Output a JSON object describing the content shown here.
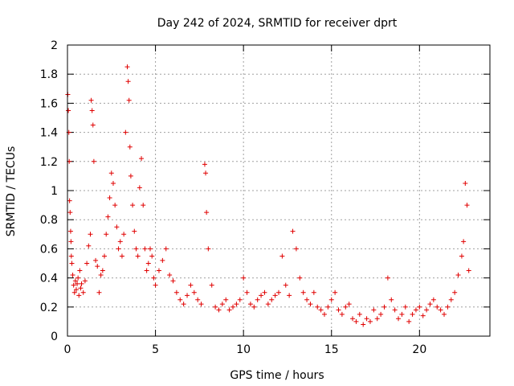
{
  "chart_data": {
    "type": "scatter",
    "title": "Day 242 of 2024, SRMTID for receiver dprt",
    "xlabel": "GPS time / hours",
    "ylabel": "SRMTID / TECUs",
    "xlim": [
      0,
      24
    ],
    "ylim": [
      0,
      2
    ],
    "xticks": [
      0,
      5,
      10,
      15,
      20
    ],
    "xtick_labels": [
      "0",
      "5",
      "10",
      "15",
      "20"
    ],
    "yticks": [
      0,
      0.2,
      0.4,
      0.6,
      0.8,
      1,
      1.2,
      1.4,
      1.6,
      1.8,
      2
    ],
    "ytick_labels": [
      "0",
      "0.2",
      "0.4",
      "0.6",
      "0.8",
      "1",
      "1.2",
      "1.4",
      "1.6",
      "1.8",
      "2"
    ],
    "grid": true,
    "marker": "+",
    "color": "#e00000",
    "series": [
      {
        "name": "SRMTID",
        "x": [
          0.02,
          0.05,
          0.08,
          0.1,
          0.12,
          0.15,
          0.18,
          0.2,
          0.22,
          0.25,
          0.3,
          0.35,
          0.4,
          0.45,
          0.5,
          0.55,
          0.6,
          0.65,
          0.7,
          0.75,
          0.8,
          0.9,
          1.0,
          1.1,
          1.2,
          1.3,
          1.35,
          1.4,
          1.45,
          1.5,
          1.6,
          1.7,
          1.8,
          1.9,
          2.0,
          2.1,
          2.2,
          2.3,
          2.4,
          2.5,
          2.6,
          2.7,
          2.8,
          2.9,
          3.0,
          3.1,
          3.2,
          3.3,
          3.4,
          3.45,
          3.5,
          3.55,
          3.6,
          3.7,
          3.8,
          3.9,
          4.0,
          4.1,
          4.2,
          4.3,
          4.4,
          4.5,
          4.6,
          4.7,
          4.8,
          4.9,
          5.0,
          5.2,
          5.4,
          5.6,
          5.8,
          6.0,
          6.2,
          6.4,
          6.6,
          6.8,
          7.0,
          7.2,
          7.4,
          7.6,
          7.8,
          7.85,
          7.9,
          8.0,
          8.2,
          8.4,
          8.6,
          8.8,
          9.0,
          9.2,
          9.4,
          9.6,
          9.8,
          10.0,
          10.2,
          10.4,
          10.6,
          10.8,
          11.0,
          11.2,
          11.4,
          11.6,
          11.8,
          12.0,
          12.2,
          12.4,
          12.6,
          12.8,
          13.0,
          13.2,
          13.4,
          13.6,
          13.8,
          14.0,
          14.2,
          14.4,
          14.6,
          14.8,
          15.0,
          15.2,
          15.4,
          15.6,
          15.8,
          16.0,
          16.2,
          16.4,
          16.6,
          16.8,
          17.0,
          17.2,
          17.4,
          17.6,
          17.8,
          18.0,
          18.2,
          18.4,
          18.6,
          18.8,
          19.0,
          19.2,
          19.4,
          19.6,
          19.8,
          20.0,
          20.2,
          20.4,
          20.6,
          20.8,
          21.0,
          21.2,
          21.4,
          21.6,
          21.8,
          22.0,
          22.2,
          22.4,
          22.5,
          22.6,
          22.7,
          22.8
        ],
        "y": [
          1.66,
          1.55,
          1.4,
          1.2,
          0.93,
          0.85,
          0.72,
          0.65,
          0.55,
          0.5,
          0.42,
          0.35,
          0.3,
          0.38,
          0.32,
          0.36,
          0.4,
          0.28,
          0.45,
          0.33,
          0.36,
          0.3,
          0.38,
          0.5,
          0.62,
          0.7,
          1.62,
          1.55,
          1.45,
          1.2,
          0.52,
          0.48,
          0.3,
          0.42,
          0.45,
          0.55,
          0.7,
          0.82,
          0.95,
          1.12,
          1.05,
          0.9,
          0.75,
          0.6,
          0.65,
          0.55,
          0.7,
          1.4,
          1.85,
          1.75,
          1.62,
          1.3,
          1.1,
          0.9,
          0.72,
          0.6,
          0.55,
          1.02,
          1.22,
          0.9,
          0.6,
          0.45,
          0.5,
          0.6,
          0.55,
          0.4,
          0.35,
          0.45,
          0.52,
          0.6,
          0.42,
          0.38,
          0.3,
          0.25,
          0.22,
          0.28,
          0.35,
          0.3,
          0.25,
          0.22,
          1.18,
          1.12,
          0.85,
          0.6,
          0.35,
          0.2,
          0.18,
          0.22,
          0.25,
          0.18,
          0.2,
          0.22,
          0.25,
          0.4,
          0.3,
          0.22,
          0.2,
          0.25,
          0.28,
          0.3,
          0.22,
          0.25,
          0.28,
          0.3,
          0.55,
          0.35,
          0.28,
          0.72,
          0.6,
          0.4,
          0.3,
          0.25,
          0.22,
          0.3,
          0.2,
          0.18,
          0.15,
          0.2,
          0.25,
          0.3,
          0.18,
          0.15,
          0.2,
          0.22,
          0.12,
          0.1,
          0.15,
          0.08,
          0.12,
          0.1,
          0.18,
          0.12,
          0.15,
          0.2,
          0.4,
          0.25,
          0.18,
          0.12,
          0.15,
          0.2,
          0.1,
          0.15,
          0.18,
          0.2,
          0.14,
          0.18,
          0.22,
          0.25,
          0.2,
          0.18,
          0.15,
          0.2,
          0.25,
          0.3,
          0.42,
          0.55,
          0.65,
          1.05,
          0.9,
          0.45
        ]
      }
    ]
  }
}
